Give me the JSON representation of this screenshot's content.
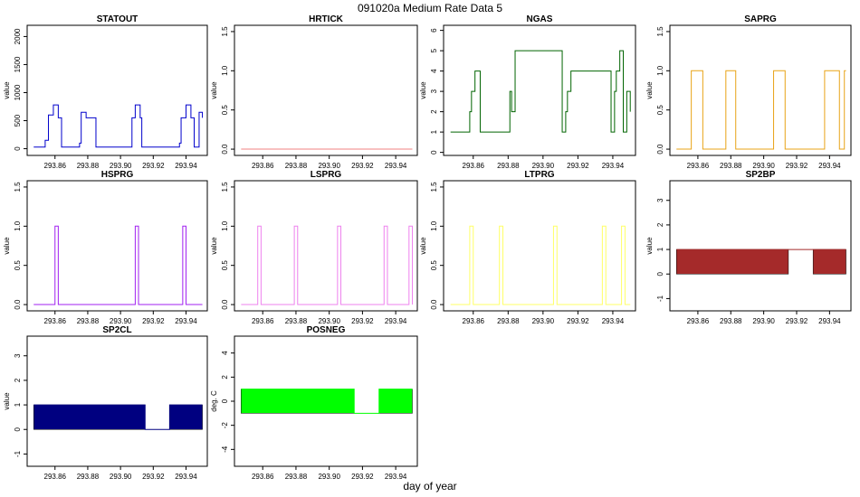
{
  "page": {
    "title": "091020a   Medium Rate Data 5",
    "xlabel": "day of year"
  },
  "chart_data": [
    {
      "type": "line",
      "title": "STATOUT",
      "ylabel": "value",
      "color": "#0000cc",
      "fill": false,
      "ylim": [
        -120,
        2200
      ],
      "yticks": [
        0,
        500,
        1000,
        1500,
        2000
      ],
      "ytick_labels": [
        "0",
        "500",
        "1000",
        "1500",
        "2000"
      ],
      "xlim": [
        293.843,
        293.953
      ],
      "xticks": [
        293.86,
        293.88,
        293.9,
        293.92,
        293.94
      ],
      "xtick_labels": [
        "293.86",
        "293.88",
        "293.90",
        "293.92",
        "293.94"
      ],
      "series": [
        {
          "x": [
            293.847,
            293.853,
            293.854,
            293.856,
            293.858,
            293.859,
            293.861,
            293.862,
            293.864,
            293.873,
            293.875,
            293.876,
            293.877,
            293.879,
            293.88,
            293.885,
            293.905,
            293.907,
            293.908,
            293.909,
            293.91,
            293.912,
            293.913,
            293.934,
            293.936,
            293.937,
            293.938,
            293.94,
            293.942,
            293.943,
            293.945,
            293.947,
            293.948,
            293.95
          ],
          "y": [
            30,
            30,
            150,
            600,
            600,
            780,
            780,
            550,
            30,
            30,
            100,
            650,
            650,
            550,
            550,
            30,
            30,
            550,
            550,
            780,
            780,
            550,
            30,
            30,
            100,
            550,
            550,
            780,
            780,
            550,
            30,
            30,
            650,
            550
          ]
        }
      ]
    },
    {
      "type": "line",
      "title": "HRTICK",
      "ylabel": "value",
      "color": "#f08080",
      "fill": false,
      "ylim": [
        -0.08,
        1.58
      ],
      "yticks": [
        0,
        0.5,
        1.0,
        1.5
      ],
      "ytick_labels": [
        "0.0",
        "0.5",
        "1.0",
        "1.5"
      ],
      "xlim": [
        293.843,
        293.953
      ],
      "xticks": [
        293.86,
        293.88,
        293.9,
        293.92,
        293.94
      ],
      "xtick_labels": [
        "293.86",
        "293.88",
        "293.90",
        "293.92",
        "293.94"
      ],
      "series": [
        {
          "x": [
            293.847,
            293.95
          ],
          "y": [
            0,
            0
          ]
        }
      ]
    },
    {
      "type": "line",
      "title": "NGAS",
      "ylabel": "value",
      "color": "#006400",
      "fill": false,
      "ylim": [
        -0.15,
        6.25
      ],
      "yticks": [
        0,
        1,
        2,
        3,
        4,
        5,
        6
      ],
      "ytick_labels": [
        "0",
        "1",
        "2",
        "3",
        "4",
        "5",
        "6"
      ],
      "xlim": [
        293.843,
        293.953
      ],
      "xticks": [
        293.86,
        293.88,
        293.9,
        293.92,
        293.94
      ],
      "xtick_labels": [
        "293.86",
        "293.88",
        "293.90",
        "293.92",
        "293.94"
      ],
      "series": [
        {
          "x": [
            293.847,
            293.856,
            293.858,
            293.859,
            293.861,
            293.864,
            293.879,
            293.881,
            293.882,
            293.884,
            293.911,
            293.913,
            293.914,
            293.916,
            293.939,
            293.941,
            293.942,
            293.944,
            293.946,
            293.947,
            293.948,
            293.95
          ],
          "y": [
            1,
            1,
            2,
            3,
            4,
            1,
            1,
            3,
            2,
            5,
            1,
            2,
            3,
            4,
            1,
            3,
            4,
            5,
            1,
            1,
            3,
            2
          ]
        }
      ]
    },
    {
      "type": "line",
      "title": "SAPRG",
      "ylabel": "value",
      "color": "#e8a317",
      "fill": false,
      "ylim": [
        -0.08,
        1.58
      ],
      "yticks": [
        0,
        0.5,
        1.0,
        1.5
      ],
      "ytick_labels": [
        "0.0",
        "0.5",
        "1.0",
        "1.5"
      ],
      "xlim": [
        293.843,
        293.953
      ],
      "xticks": [
        293.86,
        293.88,
        293.9,
        293.92,
        293.94
      ],
      "xtick_labels": [
        "293.86",
        "293.88",
        "293.90",
        "293.92",
        "293.94"
      ],
      "series": [
        {
          "x": [
            293.847,
            293.856,
            293.863,
            293.877,
            293.883,
            293.906,
            293.913,
            293.937,
            293.946,
            293.949,
            293.95
          ],
          "y": [
            0,
            1,
            0,
            1,
            0,
            1,
            0,
            1,
            0,
            1,
            1
          ]
        }
      ]
    },
    {
      "type": "line",
      "title": "HSPRG",
      "ylabel": "value",
      "color": "#a020f0",
      "fill": false,
      "ylim": [
        -0.08,
        1.58
      ],
      "yticks": [
        0,
        0.5,
        1.0,
        1.5
      ],
      "ytick_labels": [
        "0.0",
        "0.5",
        "1.0",
        "1.5"
      ],
      "xlim": [
        293.843,
        293.953
      ],
      "xticks": [
        293.86,
        293.88,
        293.9,
        293.92,
        293.94
      ],
      "xtick_labels": [
        "293.86",
        "293.88",
        "293.90",
        "293.92",
        "293.94"
      ],
      "series": [
        {
          "x": [
            293.847,
            293.86,
            293.862,
            293.909,
            293.911,
            293.938,
            293.94,
            293.95
          ],
          "y": [
            0,
            1,
            0,
            1,
            0,
            1,
            0,
            0
          ]
        }
      ]
    },
    {
      "type": "line",
      "title": "LSPRG",
      "ylabel": "value",
      "color": "#ee82ee",
      "fill": false,
      "ylim": [
        -0.08,
        1.58
      ],
      "yticks": [
        0,
        0.5,
        1.0,
        1.5
      ],
      "ytick_labels": [
        "0.0",
        "0.5",
        "1.0",
        "1.5"
      ],
      "xlim": [
        293.843,
        293.953
      ],
      "xticks": [
        293.86,
        293.88,
        293.9,
        293.92,
        293.94
      ],
      "xtick_labels": [
        "293.86",
        "293.88",
        "293.90",
        "293.92",
        "293.94"
      ],
      "series": [
        {
          "x": [
            293.847,
            293.857,
            293.859,
            293.879,
            293.881,
            293.905,
            293.907,
            293.933,
            293.935,
            293.948,
            293.95
          ],
          "y": [
            0,
            1,
            0,
            1,
            0,
            1,
            0,
            1,
            0,
            1,
            0
          ]
        }
      ]
    },
    {
      "type": "line",
      "title": "LTPRG",
      "ylabel": "value",
      "color": "#ffff66",
      "fill": false,
      "ylim": [
        -0.08,
        1.58
      ],
      "yticks": [
        0,
        0.5,
        1.0,
        1.5
      ],
      "ytick_labels": [
        "0.0",
        "0.5",
        "1.0",
        "1.5"
      ],
      "xlim": [
        293.843,
        293.953
      ],
      "xticks": [
        293.86,
        293.88,
        293.9,
        293.92,
        293.94
      ],
      "xtick_labels": [
        "293.86",
        "293.88",
        "293.90",
        "293.92",
        "293.94"
      ],
      "series": [
        {
          "x": [
            293.847,
            293.858,
            293.86,
            293.875,
            293.877,
            293.906,
            293.908,
            293.934,
            293.936,
            293.945,
            293.947,
            293.95
          ],
          "y": [
            0,
            1,
            0,
            1,
            0,
            1,
            0,
            1,
            0,
            1,
            0,
            0
          ]
        }
      ]
    },
    {
      "type": "area",
      "title": "SP2BP",
      "ylabel": "value",
      "color": "#a52a2a",
      "fill": true,
      "ylim": [
        -1.5,
        3.8
      ],
      "yticks": [
        -1,
        0,
        1,
        2,
        3
      ],
      "ytick_labels": [
        "-1",
        "0",
        "1",
        "2",
        "3"
      ],
      "xlim": [
        293.843,
        293.953
      ],
      "xticks": [
        293.86,
        293.88,
        293.9,
        293.92,
        293.94
      ],
      "xtick_labels": [
        "293.86",
        "293.88",
        "293.90",
        "293.92",
        "293.94"
      ],
      "series": [
        {
          "x": [
            293.847,
            293.915,
            293.915,
            293.93,
            293.93,
            293.95
          ],
          "y": [
            1,
            1,
            1,
            1,
            1,
            1
          ],
          "fill_segments": [
            [
              293.847,
              293.915
            ],
            [
              293.93,
              293.95
            ]
          ]
        }
      ]
    },
    {
      "type": "area",
      "title": "SP2CL",
      "ylabel": "value",
      "color": "#000080",
      "fill": true,
      "ylim": [
        -1.5,
        3.8
      ],
      "yticks": [
        -1,
        0,
        1,
        2,
        3
      ],
      "ytick_labels": [
        "-1",
        "0",
        "1",
        "2",
        "3"
      ],
      "xlim": [
        293.843,
        293.953
      ],
      "xticks": [
        293.86,
        293.88,
        293.9,
        293.92,
        293.94
      ],
      "xtick_labels": [
        "293.86",
        "293.88",
        "293.90",
        "293.92",
        "293.94"
      ],
      "series": [
        {
          "x": [
            293.847,
            293.915,
            293.915,
            293.93,
            293.93,
            293.95
          ],
          "y": [
            1,
            1,
            0,
            0,
            1,
            1
          ],
          "fill_segments": [
            [
              293.847,
              293.915
            ],
            [
              293.93,
              293.95
            ]
          ]
        }
      ]
    },
    {
      "type": "area",
      "title": "POSNEG",
      "ylabel": "deg. C",
      "color": "#00ff00",
      "fill": true,
      "ylim": [
        -5.4,
        5.4
      ],
      "yticks": [
        -4,
        -2,
        0,
        2,
        4
      ],
      "ytick_labels": [
        "-4",
        "-2",
        "0",
        "2",
        "4"
      ],
      "xlim": [
        293.843,
        293.953
      ],
      "xticks": [
        293.86,
        293.88,
        293.9,
        293.92,
        293.94
      ],
      "xtick_labels": [
        "293.86",
        "293.88",
        "293.90",
        "293.92",
        "293.94"
      ],
      "series": [
        {
          "x": [
            293.847,
            293.915,
            293.915,
            293.93,
            293.93,
            293.95
          ],
          "y": [
            1,
            1,
            -1,
            -1,
            1,
            1
          ],
          "fill_segments": [
            [
              293.847,
              293.915
            ],
            [
              293.93,
              293.95
            ]
          ],
          "fill_low": -1
        }
      ]
    }
  ]
}
